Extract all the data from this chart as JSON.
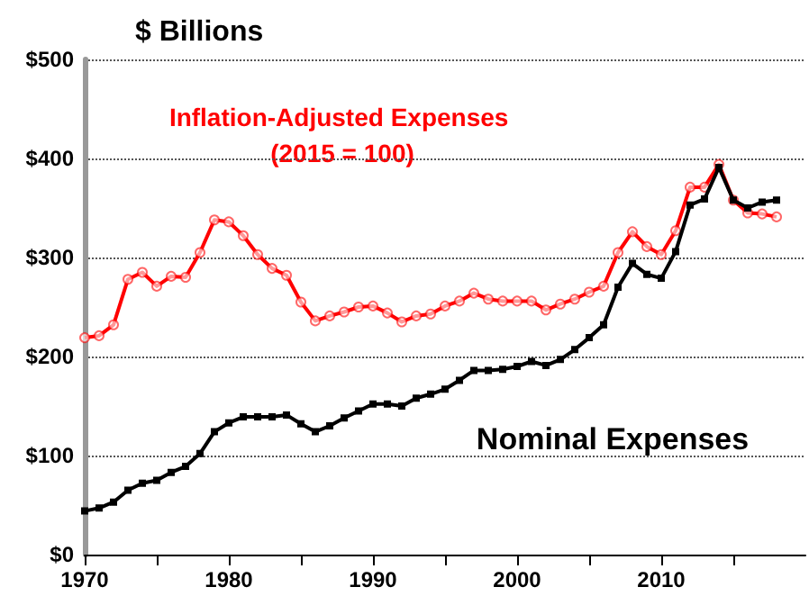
{
  "chart_data": {
    "type": "line",
    "title": "$ Billions",
    "x": [
      1970,
      1971,
      1972,
      1973,
      1974,
      1975,
      1976,
      1977,
      1978,
      1979,
      1980,
      1981,
      1982,
      1983,
      1984,
      1985,
      1986,
      1987,
      1988,
      1989,
      1990,
      1991,
      1992,
      1993,
      1994,
      1995,
      1996,
      1997,
      1998,
      1999,
      2000,
      2001,
      2002,
      2003,
      2004,
      2005,
      2006,
      2007,
      2008,
      2009,
      2010,
      2011,
      2012,
      2013,
      2014,
      2015,
      2016,
      2017,
      2018
    ],
    "series": [
      {
        "name": "Inflation-Adjusted Expenses (2015 = 100)",
        "color": "#ff0000",
        "marker": "circle",
        "values": [
          219,
          221,
          232,
          278,
          285,
          271,
          281,
          280,
          305,
          338,
          336,
          322,
          303,
          289,
          282,
          255,
          236,
          241,
          245,
          250,
          251,
          244,
          235,
          241,
          243,
          251,
          256,
          264,
          258,
          256,
          256,
          256,
          247,
          253,
          258,
          265,
          271,
          305,
          326,
          311,
          303,
          327,
          371,
          371,
          394,
          358,
          345,
          344,
          341
        ]
      },
      {
        "name": "Nominal Expenses",
        "color": "#000000",
        "marker": "square",
        "values": [
          44,
          47,
          53,
          65,
          72,
          75,
          83,
          89,
          102,
          124,
          133,
          139,
          139,
          139,
          141,
          132,
          124,
          130,
          138,
          145,
          152,
          152,
          150,
          158,
          162,
          167,
          176,
          186,
          186,
          187,
          190,
          195,
          191,
          197,
          207,
          219,
          232,
          270,
          294,
          283,
          279,
          306,
          353,
          359,
          391,
          358,
          350,
          356,
          358
        ]
      }
    ],
    "xlim": [
      1970,
      2020
    ],
    "xticks": [
      1970,
      {
        "value": 1975,
        "label": null
      },
      1980,
      {
        "value": 1985,
        "label": null
      },
      1990,
      {
        "value": 1995,
        "label": null
      },
      2000,
      {
        "value": 2005,
        "label": null
      },
      2010,
      {
        "value": 2015,
        "label": null
      }
    ],
    "ylim": [
      0,
      500
    ],
    "yticks": [
      {
        "value": 0,
        "label": "$0"
      },
      {
        "value": 100,
        "label": "$100"
      },
      {
        "value": 200,
        "label": "$200"
      },
      {
        "value": 300,
        "label": "$300"
      },
      {
        "value": 400,
        "label": "$400"
      },
      {
        "value": 500,
        "label": "$500"
      }
    ],
    "grid": "y",
    "line_style": "solid",
    "legend": false
  }
}
